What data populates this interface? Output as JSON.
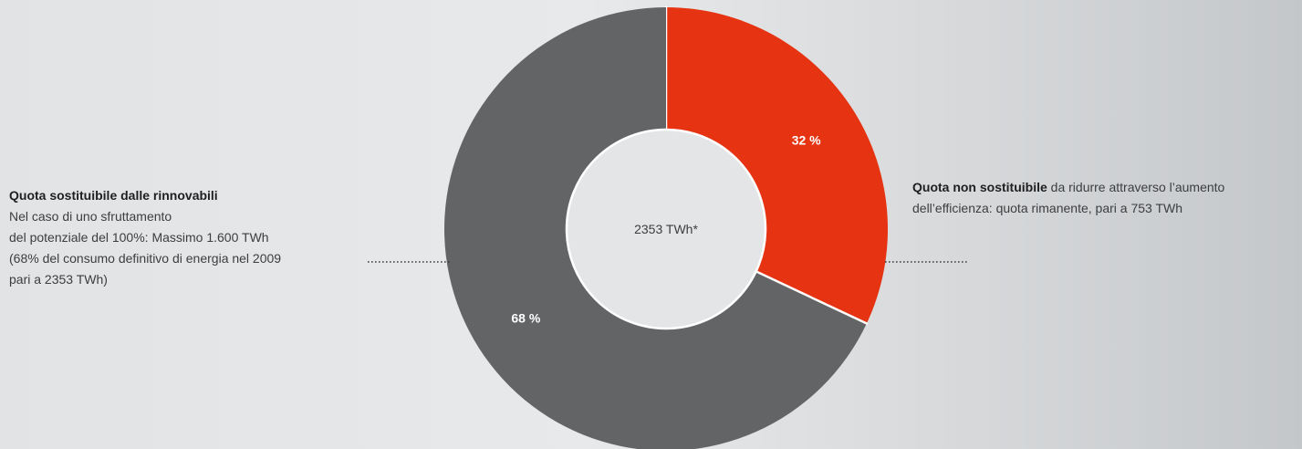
{
  "chart_data": {
    "type": "pie",
    "donut": true,
    "center_label": "2353 TWh*",
    "slices": [
      {
        "label": "32 %",
        "value": 32,
        "color": "#e63312"
      },
      {
        "label": "68 %",
        "value": 68,
        "color": "#636466"
      }
    ],
    "start": "12 o'clock, clockwise"
  },
  "annotations": {
    "left": {
      "title": "Quota sostituibile dalle rinnovabili",
      "lines": [
        "Nel caso di uno sfruttamento",
        "del potenziale del 100%: Massimo 1.600 TWh",
        "(68% del consumo definitivo di energia nel 2009",
        "pari a 2353 TWh)"
      ]
    },
    "right": {
      "title": "Quota non sostituibile",
      "text_after_title": " da ridurre attraverso l’aumento",
      "lines": [
        "dell’efficienza: quota rimanente, pari a 753 TWh"
      ]
    }
  },
  "colors": {
    "accent": "#e63312",
    "dark": "#636466",
    "hole": "#e3e5e7",
    "leader": "#3a3a3a"
  }
}
